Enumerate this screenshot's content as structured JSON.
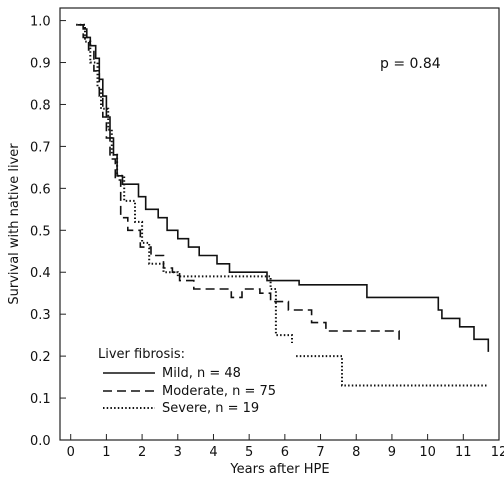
{
  "chart_data": {
    "type": "line",
    "xlabel": "Years after HPE",
    "ylabel": "Survival with native liver",
    "xlim": [
      -0.3,
      12
    ],
    "ylim": [
      0,
      1.03
    ],
    "xticks": [
      "0",
      "1",
      "2",
      "3",
      "4",
      "5",
      "6",
      "7",
      "8",
      "9",
      "10",
      "11",
      "12"
    ],
    "yticks": [
      "0.0",
      "0.1",
      "0.2",
      "0.3",
      "0.4",
      "0.5",
      "0.6",
      "0.7",
      "0.8",
      "0.9",
      "1.0"
    ],
    "annotation": "p = 0.84",
    "legend": {
      "title": "Liver fibrosis:",
      "placement": "bottom-left"
    },
    "series": [
      {
        "name": "Mild, n = 48",
        "style": "solid",
        "x": [
          0.2,
          0.35,
          0.45,
          0.55,
          0.7,
          0.8,
          0.9,
          1.0,
          1.1,
          1.2,
          1.3,
          1.45,
          1.9,
          2.1,
          2.45,
          2.7,
          3.0,
          3.3,
          3.6,
          4.1,
          4.45,
          5.5,
          6.4,
          8.3,
          10.3,
          10.4,
          10.9,
          11.3,
          11.7
        ],
        "y": [
          0.99,
          0.98,
          0.96,
          0.94,
          0.91,
          0.86,
          0.82,
          0.77,
          0.72,
          0.68,
          0.63,
          0.61,
          0.58,
          0.55,
          0.53,
          0.5,
          0.48,
          0.46,
          0.44,
          0.42,
          0.4,
          0.38,
          0.37,
          0.34,
          0.31,
          0.29,
          0.27,
          0.24,
          0.21
        ]
      },
      {
        "name": "Moderate, n = 75",
        "style": "dashed",
        "x": [
          0.2,
          0.35,
          0.5,
          0.65,
          0.8,
          0.9,
          1.0,
          1.1,
          1.25,
          1.4,
          1.6,
          1.95,
          2.25,
          2.6,
          2.85,
          3.05,
          3.45,
          4.5,
          4.8,
          5.3,
          5.6,
          6.1,
          6.75,
          7.15,
          7.7,
          9.2
        ],
        "y": [
          0.99,
          0.96,
          0.93,
          0.88,
          0.82,
          0.77,
          0.72,
          0.67,
          0.62,
          0.53,
          0.5,
          0.46,
          0.44,
          0.41,
          0.4,
          0.38,
          0.36,
          0.34,
          0.36,
          0.35,
          0.33,
          0.31,
          0.28,
          0.26,
          0.26,
          0.23
        ]
      },
      {
        "name": "Severe, n = 19",
        "style": "dotted",
        "x": [
          0.15,
          0.4,
          0.55,
          0.75,
          0.85,
          1.05,
          1.15,
          1.3,
          1.5,
          1.8,
          2.0,
          2.2,
          2.6,
          3.0,
          5.6,
          5.75,
          6.2,
          7.6,
          11.7
        ],
        "y": [
          0.99,
          0.95,
          0.9,
          0.84,
          0.79,
          0.74,
          0.68,
          0.63,
          0.57,
          0.52,
          0.47,
          0.42,
          0.4,
          0.39,
          0.36,
          0.25,
          0.2,
          0.13,
          0.13
        ]
      }
    ]
  }
}
